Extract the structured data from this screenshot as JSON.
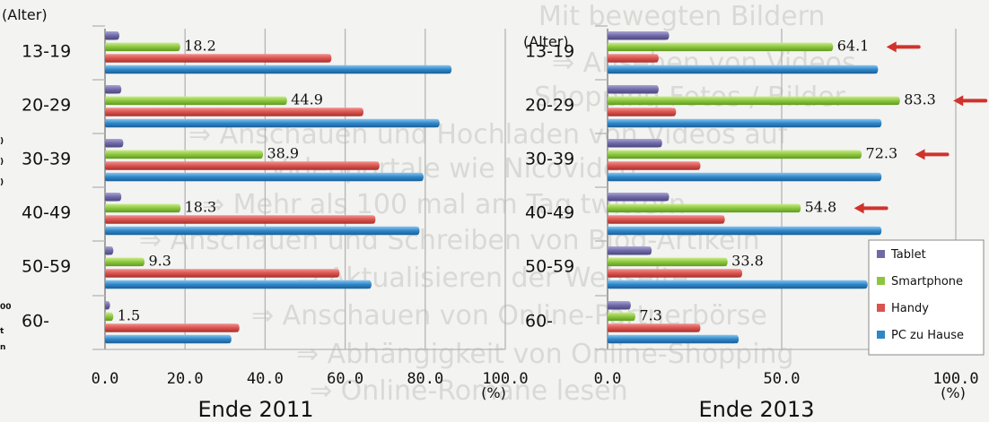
{
  "background_text": [
    "Mit bewegten Bildern",
    "⇒ Ansehen von Videos",
    "Shopping Fotos / Bilder",
    "⇒ Anschauen und Hochladen von Videos auf",
    "Videoportale wie Nicovideo",
    "⇒ Mehr als 100 mal am Tag twittern",
    "⇒ Anschauen und Schreiben von Blog-Artikeln",
    "⇒ Aktualisieren der Webseite",
    "⇒ Anschauen von Online-Partnerbörse",
    "⇒ Abhängigkeit von Online-Shopping",
    "⇒ Online-Romane lesen"
  ],
  "left_edge_fragments": [
    ")",
    ")",
    ")",
    "00",
    "t",
    "n"
  ],
  "chart_data": [
    {
      "type": "bar",
      "orientation": "horizontal",
      "title": "Ende 2011",
      "category_axis_label": "(Alter)",
      "unit_label": "(%)",
      "categories": [
        "13-19",
        "20-29",
        "30-39",
        "40-49",
        "50-59",
        "60-"
      ],
      "xlim": [
        0,
        100
      ],
      "ticks": [
        "0.0",
        "20.0",
        "40.0",
        "60.0",
        "80.0",
        "100.0"
      ],
      "grid": true,
      "series": [
        {
          "name": "Tablet",
          "values": [
            3,
            3.5,
            4,
            3.5,
            1.5,
            0.5
          ]
        },
        {
          "name": "Smartphone",
          "values": [
            18.2,
            44.9,
            38.9,
            18.3,
            9.3,
            1.5
          ]
        },
        {
          "name": "Handy",
          "values": [
            56,
            64,
            68,
            67,
            58,
            33
          ]
        },
        {
          "name": "PC zu Hause",
          "values": [
            86,
            83,
            79,
            78,
            66,
            31
          ]
        }
      ],
      "labeled_series": "Smartphone"
    },
    {
      "type": "bar",
      "orientation": "horizontal",
      "title": "Ende 2013",
      "category_axis_label": "(Alter)",
      "unit_label": "(%)",
      "categories": [
        "13-19",
        "20-29",
        "30-39",
        "40-49",
        "50-59",
        "60-"
      ],
      "xlim": [
        0,
        100
      ],
      "ticks": [
        "0.0",
        "50.0",
        "100.0"
      ],
      "grid": true,
      "series": [
        {
          "name": "Tablet",
          "values": [
            17,
            14,
            15,
            17,
            12,
            6
          ]
        },
        {
          "name": "Smartphone",
          "values": [
            64.1,
            83.3,
            72.3,
            54.8,
            33.8,
            7.3
          ]
        },
        {
          "name": "Handy",
          "values": [
            14,
            19,
            26,
            33,
            38,
            26
          ]
        },
        {
          "name": "PC zu Hause",
          "values": [
            77,
            78,
            78,
            78,
            74,
            37
          ]
        }
      ],
      "labeled_series": "Smartphone",
      "highlighted_categories": [
        "13-19",
        "20-29",
        "30-39",
        "40-49"
      ]
    }
  ],
  "legend": {
    "placement": "bottom-right",
    "items": [
      {
        "name": "Tablet",
        "color": "#6f6aa6"
      },
      {
        "name": "Smartphone",
        "color": "#8cc63f"
      },
      {
        "name": "Handy",
        "color": "#d9534f"
      },
      {
        "name": "PC zu Hause",
        "color": "#2e86c8"
      }
    ]
  },
  "arrow_color": "#d0322c"
}
